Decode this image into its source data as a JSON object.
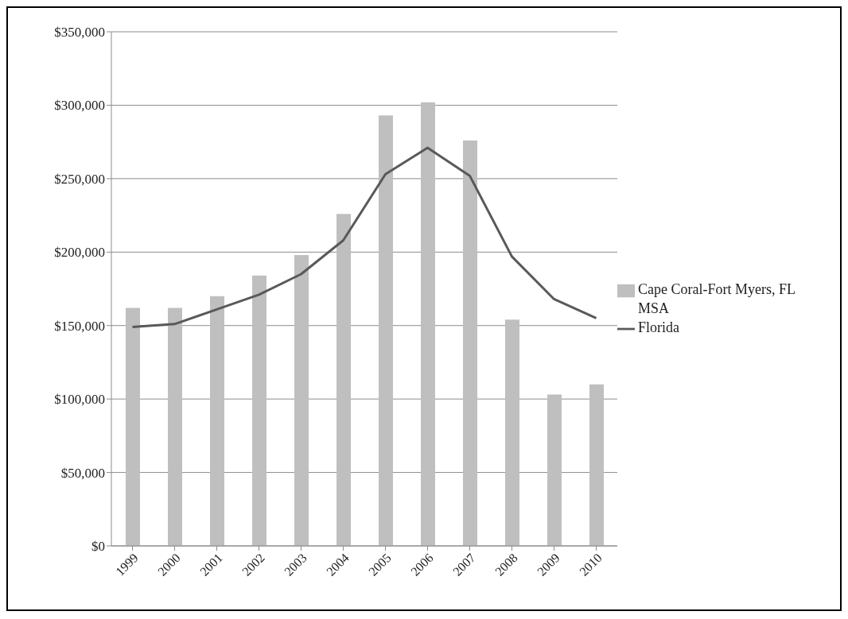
{
  "chart_data": {
    "type": "bar",
    "categories": [
      "1999",
      "2000",
      "2001",
      "2002",
      "2003",
      "2004",
      "2005",
      "2006",
      "2007",
      "2008",
      "2009",
      "2010"
    ],
    "series": [
      {
        "name": "Cape Coral-Fort Myers, FL MSA",
        "color": "#bfbfbf",
        "values": [
          162000,
          162000,
          170000,
          184000,
          198000,
          226000,
          293000,
          302000,
          276000,
          154000,
          103000,
          110000
        ]
      },
      {
        "name": "Florida",
        "type": "line",
        "color": "#595959",
        "values": [
          149000,
          151000,
          161000,
          171000,
          185000,
          208000,
          253000,
          271000,
          252000,
          197000,
          168000,
          155000
        ]
      }
    ],
    "ylim": [
      0,
      350000
    ],
    "yticks": [
      {
        "value": 0,
        "label": "$0"
      },
      {
        "value": 50000,
        "label": "$50,000"
      },
      {
        "value": 100000,
        "label": "$100,000"
      },
      {
        "value": 150000,
        "label": "$150,000"
      },
      {
        "value": 200000,
        "label": "$200,000"
      },
      {
        "value": 250000,
        "label": "$250,000"
      },
      {
        "value": 300000,
        "label": "$300,000"
      },
      {
        "value": 350000,
        "label": "$350,000"
      }
    ],
    "grid": "y",
    "legend": "right",
    "marker": "none",
    "line_style": "solid"
  }
}
